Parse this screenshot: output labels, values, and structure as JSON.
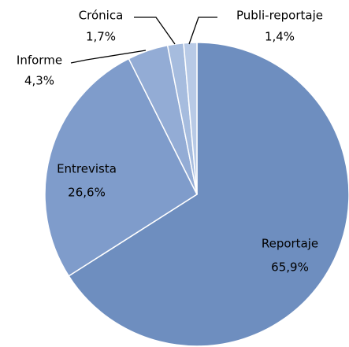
{
  "chart_data": {
    "type": "pie",
    "categories": [
      "Reportaje",
      "Entrevista",
      "Informe",
      "Crónica",
      "Publi-reportaje"
    ],
    "values": [
      65.9,
      26.6,
      4.3,
      1.7,
      1.4
    ],
    "value_labels": [
      "65,9%",
      "26,6%",
      "4,3%",
      "1,7%",
      "1,4%"
    ],
    "colors": [
      "#6e8ebf",
      "#7f9ccb",
      "#93acd5",
      "#a6bcde",
      "#b8cae6"
    ]
  }
}
